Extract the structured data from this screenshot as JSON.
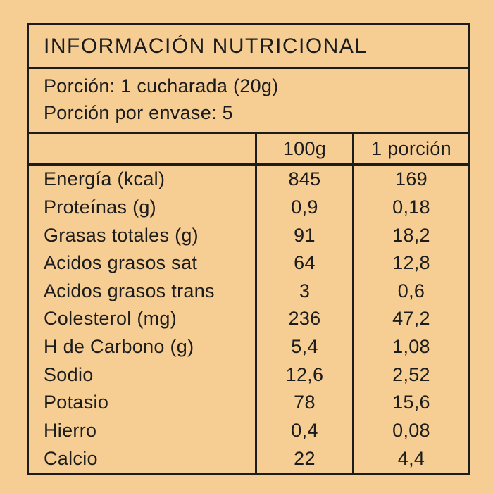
{
  "colors": {
    "background": "#F6CE93",
    "border": "#1C1C1C",
    "text": "#1C1C1C"
  },
  "label": {
    "title": "INFORMACIÓN NUTRICIONAL",
    "serving": {
      "line1": "Porción: 1 cucharada (20g)",
      "line2": "Porción por envase: 5"
    },
    "columns": {
      "col1": "",
      "col2": "100g",
      "col3": "1 porción"
    },
    "rows": [
      {
        "name": "Energía (kcal)",
        "per_100g": "845",
        "per_serving": "169"
      },
      {
        "name": "Proteínas (g)",
        "per_100g": "0,9",
        "per_serving": "0,18"
      },
      {
        "name": "Grasas totales (g)",
        "per_100g": "91",
        "per_serving": "18,2"
      },
      {
        "name": "Acidos grasos sat",
        "per_100g": "64",
        "per_serving": "12,8"
      },
      {
        "name": "Acidos grasos trans",
        "per_100g": "3",
        "per_serving": "0,6"
      },
      {
        "name": "Colesterol (mg)",
        "per_100g": "236",
        "per_serving": "47,2"
      },
      {
        "name": "H de Carbono (g)",
        "per_100g": "5,4",
        "per_serving": "1,08"
      },
      {
        "name": "Sodio",
        "per_100g": "12,6",
        "per_serving": "2,52"
      },
      {
        "name": "Potasio",
        "per_100g": "78",
        "per_serving": "15,6"
      },
      {
        "name": "Hierro",
        "per_100g": "0,4",
        "per_serving": "0,08"
      },
      {
        "name": "Calcio",
        "per_100g": "22",
        "per_serving": "4,4"
      }
    ]
  }
}
